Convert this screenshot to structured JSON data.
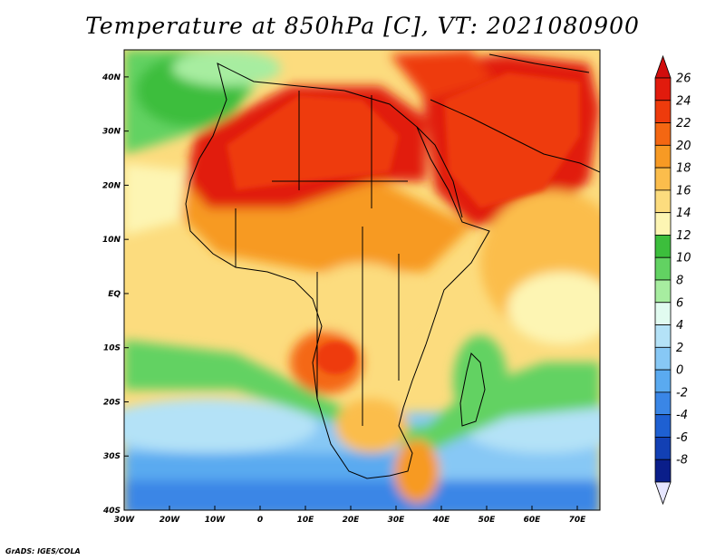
{
  "title": "Temperature at 850hPa [C], VT: 2021080900",
  "credit": "GrADS: IGES/COLA",
  "map": {
    "lon_range": [
      -30,
      75
    ],
    "lat_range": [
      -40,
      45
    ],
    "lon_ticks": [
      {
        "lon": -30,
        "label": "30W"
      },
      {
        "lon": -20,
        "label": "20W"
      },
      {
        "lon": -10,
        "label": "10W"
      },
      {
        "lon": 0,
        "label": "0"
      },
      {
        "lon": 10,
        "label": "10E"
      },
      {
        "lon": 20,
        "label": "20E"
      },
      {
        "lon": 30,
        "label": "30E"
      },
      {
        "lon": 40,
        "label": "40E"
      },
      {
        "lon": 50,
        "label": "50E"
      },
      {
        "lon": 60,
        "label": "60E"
      },
      {
        "lon": 70,
        "label": "70E"
      }
    ],
    "lat_ticks": [
      {
        "lat": 40,
        "label": "40N"
      },
      {
        "lat": 30,
        "label": "30N"
      },
      {
        "lat": 20,
        "label": "20N"
      },
      {
        "lat": 10,
        "label": "10N"
      },
      {
        "lat": 0,
        "label": "EQ"
      },
      {
        "lat": -10,
        "label": "10S"
      },
      {
        "lat": -20,
        "label": "20S"
      },
      {
        "lat": -30,
        "label": "30S"
      },
      {
        "lat": -40,
        "label": "40S"
      }
    ]
  },
  "colorbar": {
    "levels": [
      {
        "label": "26",
        "color": "#e11b0d"
      },
      {
        "label": "24",
        "color": "#ee3b0c"
      },
      {
        "label": "22",
        "color": "#f46712"
      },
      {
        "label": "20",
        "color": "#f79a24"
      },
      {
        "label": "18",
        "color": "#fbbd4c"
      },
      {
        "label": "16",
        "color": "#fcdc7e"
      },
      {
        "label": "14",
        "color": "#fdf5b3"
      },
      {
        "label": "12",
        "color": "#3cbe3c"
      },
      {
        "label": "10",
        "color": "#62d262"
      },
      {
        "label": "8",
        "color": "#a7eda0"
      },
      {
        "label": "6",
        "color": "#e1fbf0"
      },
      {
        "label": "4",
        "color": "#b4e2f7"
      },
      {
        "label": "2",
        "color": "#87c8f5"
      },
      {
        "label": "0",
        "color": "#5aaaf0"
      },
      {
        "label": "-2",
        "color": "#3a86e6"
      },
      {
        "label": "-4",
        "color": "#1e60d2"
      },
      {
        "label": "-6",
        "color": "#1240b4"
      },
      {
        "label": "-8",
        "color": "#0a1e8a"
      }
    ],
    "top_color": "#d10d0d",
    "bottom_color": "#e6e6ff"
  },
  "regions": [
    {
      "id": "sea-north",
      "color": "#3cbe3c"
    },
    {
      "id": "atlantic-green",
      "color": "#62d262"
    },
    {
      "id": "sahara-hot",
      "color": "#e11b0d"
    },
    {
      "id": "arabia-hot",
      "color": "#e11b0d"
    },
    {
      "id": "sahel-warm",
      "color": "#f79a24"
    },
    {
      "id": "central-africa",
      "color": "#fcdc7e"
    },
    {
      "id": "indian-ocean",
      "color": "#fbbd4c"
    },
    {
      "id": "southern-ocean",
      "color": "#87c8f5"
    }
  ]
}
